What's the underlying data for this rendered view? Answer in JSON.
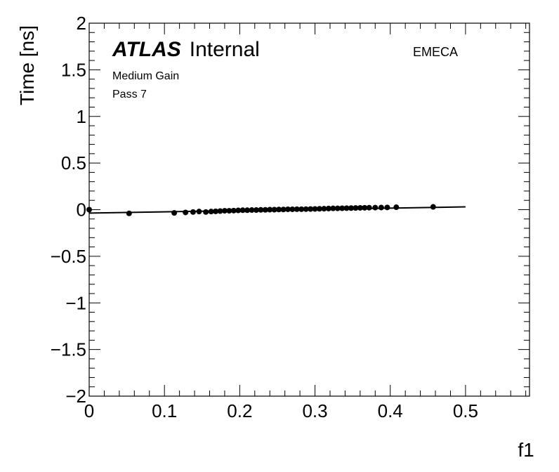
{
  "chart_data": {
    "type": "scatter",
    "xlabel": "f1",
    "ylabel": "Time [ns]",
    "xlim": [
      0,
      0.585
    ],
    "ylim": [
      -2,
      2
    ],
    "x_ticks": [
      "0",
      "0.1",
      "0.2",
      "0.3",
      "0.4",
      "0.5"
    ],
    "y_ticks": [
      "−2",
      "−1.5",
      "−1",
      "−0.5",
      "0",
      "0.5",
      "1",
      "1.5",
      "2"
    ],
    "labels": {
      "atlas": "ATLAS",
      "internal": "Internal",
      "gain": "Medium Gain",
      "pass": "Pass 7",
      "region": "EMECA"
    },
    "fit_line": {
      "x": [
        0,
        0.5
      ],
      "y": [
        -0.037,
        0.03
      ]
    },
    "points": {
      "x": [
        0.0,
        0.053,
        0.113,
        0.128,
        0.138,
        0.146,
        0.155,
        0.162,
        0.168,
        0.174,
        0.18,
        0.186,
        0.192,
        0.198,
        0.204,
        0.21,
        0.216,
        0.222,
        0.228,
        0.234,
        0.24,
        0.246,
        0.252,
        0.258,
        0.264,
        0.27,
        0.276,
        0.282,
        0.288,
        0.294,
        0.3,
        0.306,
        0.312,
        0.318,
        0.324,
        0.33,
        0.336,
        0.342,
        0.348,
        0.354,
        0.36,
        0.366,
        0.372,
        0.38,
        0.388,
        0.396,
        0.408,
        0.457
      ],
      "y": [
        0.0,
        -0.04,
        -0.035,
        -0.03,
        -0.025,
        -0.02,
        -0.025,
        -0.02,
        -0.018,
        -0.015,
        -0.012,
        -0.012,
        -0.01,
        -0.008,
        -0.006,
        -0.006,
        -0.004,
        -0.004,
        -0.002,
        -0.002,
        0.0,
        0.0,
        0.002,
        0.002,
        0.004,
        0.004,
        0.005,
        0.005,
        0.006,
        0.007,
        0.008,
        0.009,
        0.01,
        0.012,
        0.014,
        0.014,
        0.015,
        0.016,
        0.017,
        0.018,
        0.019,
        0.02,
        0.021,
        0.022,
        0.023,
        0.024,
        0.026,
        0.03
      ]
    }
  }
}
